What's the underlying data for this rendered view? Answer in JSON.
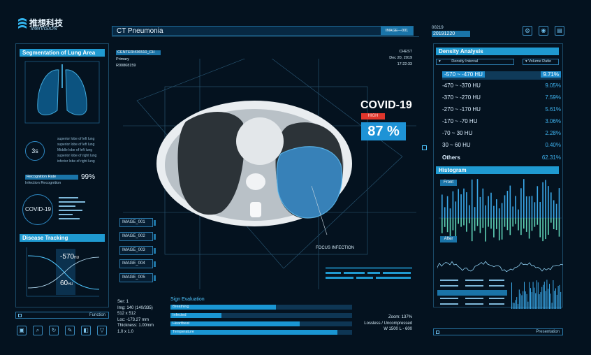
{
  "brand": {
    "cn": "推想科技",
    "en": "InferVISION"
  },
  "header": {
    "title": "CT Pneumonia",
    "image_id": "IMAGE—001",
    "series_no": "00219",
    "date_code": "20191220"
  },
  "left": {
    "segmentation_title": "Segmentation of Lung Area",
    "timer": "3s",
    "lung_legend": [
      "superior lobe of left lung",
      "superior lobe of left lung",
      "Middle lobe of left lung",
      "superior lobe of right lung",
      "inferior lobe of right lung"
    ],
    "recognition_title": "Recognition Rate",
    "recognition_sub": "Infection Recognition",
    "recognition_value": "99%",
    "covid_label": "COVID-19",
    "tracking_title": "Disease Tracking",
    "tracking_top": "-570",
    "tracking_bottom": "60",
    "tracking_unit": "HU",
    "function_label": "Function"
  },
  "scan": {
    "patient_id": "CENTER/436510_CH",
    "type": "Primary",
    "record": "R00868159",
    "region": "CHEST",
    "date": "Dec 20, 2019",
    "time": "17:22:33",
    "diagnosis": "COVID-19",
    "risk": "HIGH",
    "probability": "87 %",
    "focus_label": "FOCUS INFECTION",
    "images": [
      "IMAGE_001",
      "IMAGE_002",
      "IMAGE_003",
      "IMAGE_004",
      "IMAGE_005"
    ]
  },
  "meta": {
    "ser": "Ser: 1",
    "img": "Img: 140 (140/335)",
    "size": "512 x 512",
    "loc": "Loc: -173.27 mm",
    "thickness": "Thickness: 1.00mm",
    "scale": "1.0 x 1.0",
    "zoom": "Zoom: 137%",
    "compression": "Lossless / Uncompressed",
    "window": "W 1500 L - 600"
  },
  "sign": {
    "title": "Sign Evaluation",
    "items": [
      {
        "label": "Breathing",
        "value": 0.58
      },
      {
        "label": "Infected",
        "value": 0.28
      },
      {
        "label": "Heartbeat",
        "value": 0.71
      },
      {
        "label": "Temperature",
        "value": 0.92
      }
    ]
  },
  "density": {
    "title": "Density Analysis",
    "col1": "Density Interval",
    "col2": "Volume Ratio",
    "rows": [
      {
        "range": "-570 ~ -470 HU",
        "ratio": "9.71%"
      },
      {
        "range": "-470 ~ -370 HU",
        "ratio": "9.05%"
      },
      {
        "range": "-370 ~ -270 HU",
        "ratio": "7.59%"
      },
      {
        "range": "-270 ~ -170 HU",
        "ratio": "5.61%"
      },
      {
        "range": "-170 ~ -70 HU",
        "ratio": "3.06%"
      },
      {
        "range": "-70 ~ 30 HU",
        "ratio": "2.28%"
      },
      {
        "range": "30 ~ 60 HU",
        "ratio": "0.40%"
      },
      {
        "range": "Others",
        "ratio": "62.31%"
      }
    ]
  },
  "histogram": {
    "title": "Histogram",
    "front": "Front",
    "after": "After",
    "presentation": "Presentation"
  },
  "colors": {
    "accent": "#1f9ad1",
    "highlight": "#2fb0f0",
    "danger": "#e0362c",
    "background": "#04121f"
  }
}
